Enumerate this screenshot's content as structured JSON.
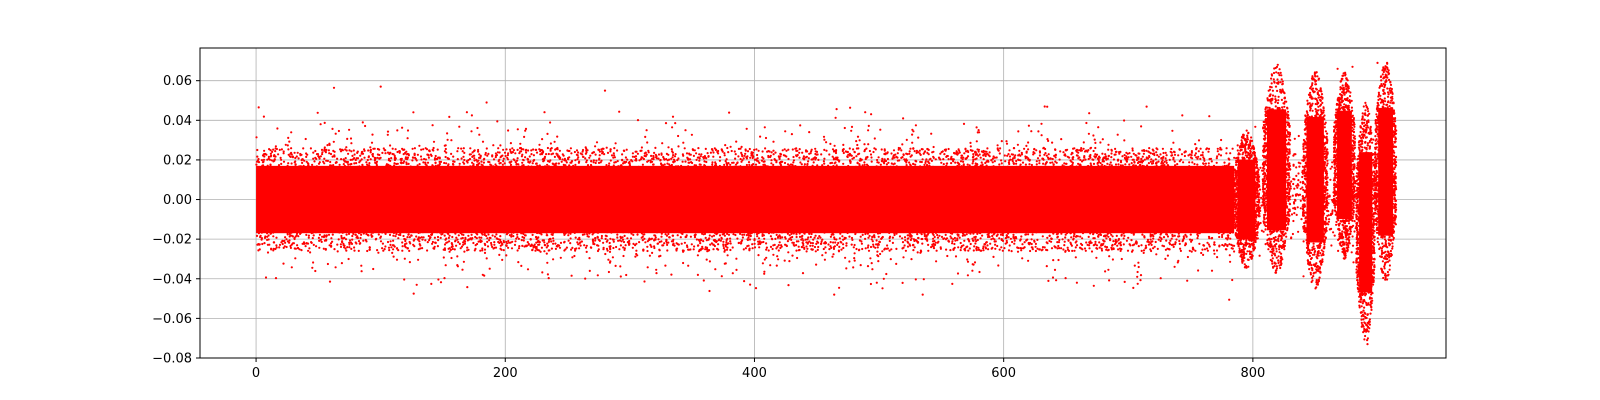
{
  "chart_data": {
    "type": "scatter",
    "title": "",
    "xlabel": "",
    "ylabel": "",
    "xlim": [
      -45,
      955
    ],
    "ylim": [
      -0.08,
      0.0765
    ],
    "x_ticks": [
      0,
      200,
      400,
      600,
      800
    ],
    "x_tick_labels": [
      "0",
      "200",
      "400",
      "600",
      "800"
    ],
    "y_ticks": [
      -0.08,
      -0.06,
      -0.04,
      -0.02,
      0.0,
      0.02,
      0.04,
      0.06
    ],
    "y_tick_labels": [
      "−0.08",
      "−0.06",
      "−0.04",
      "−0.02",
      "0.00",
      "0.02",
      "0.04",
      "0.06"
    ],
    "grid": true,
    "legend": "none",
    "marker_color": "#ff0000",
    "series": [
      {
        "marker": "dot",
        "x_range": [
          0,
          915
        ],
        "baseline_noise_band": [
          -0.025,
          0.025
        ],
        "baseline_extremes": [
          -0.048,
          0.057
        ],
        "bursts": [
          {
            "x_range": [
              785,
              805
            ],
            "y_range": [
              -0.035,
              0.035
            ]
          },
          {
            "x_range": [
              808,
              830
            ],
            "y_range": [
              -0.038,
              0.068
            ]
          },
          {
            "x_range": [
              840,
              860
            ],
            "y_range": [
              -0.045,
              0.065
            ]
          },
          {
            "x_range": [
              865,
              882
            ],
            "y_range": [
              -0.03,
              0.065
            ]
          },
          {
            "x_range": [
              883,
              898
            ],
            "y_range": [
              -0.073,
              0.05
            ]
          },
          {
            "x_range": [
              898,
              915
            ],
            "y_range": [
              -0.042,
              0.07
            ]
          }
        ],
        "notable_points": [
          {
            "x": 100,
            "y": 0.057
          },
          {
            "x": 185,
            "y": 0.049
          },
          {
            "x": 280,
            "y": 0.055
          },
          {
            "x": 535,
            "y": -0.048
          },
          {
            "x": 820,
            "y": 0.068
          },
          {
            "x": 868,
            "y": 0.066
          },
          {
            "x": 880,
            "y": 0.067
          },
          {
            "x": 892,
            "y": -0.073
          },
          {
            "x": 900,
            "y": 0.069
          }
        ]
      }
    ]
  }
}
